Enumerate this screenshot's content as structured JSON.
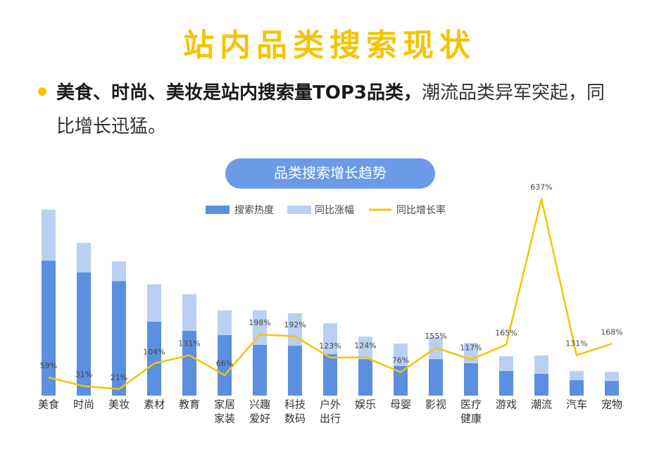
{
  "header": {
    "title": "站内品类搜索现状",
    "bullet_bold": "美食、时尚、美妆是站内搜索量TOP3品类，",
    "bullet_text": "潮流品类异军突起，同比增长迅猛。"
  },
  "chart_data": {
    "type": "bar",
    "title": "品类搜索增长趋势",
    "categories": [
      [
        "美食"
      ],
      [
        "时尚"
      ],
      [
        "美妆"
      ],
      [
        "素材"
      ],
      [
        "教育"
      ],
      [
        "家居",
        "家装"
      ],
      [
        "兴趣",
        "爱好"
      ],
      [
        "科技",
        "数码"
      ],
      [
        "户外",
        "出行"
      ],
      [
        "娱乐"
      ],
      [
        "母婴"
      ],
      [
        "影视"
      ],
      [
        "医疗",
        "健康"
      ],
      [
        "游戏"
      ],
      [
        "潮流"
      ],
      [
        "汽车"
      ],
      [
        "宠物"
      ]
    ],
    "ylim": [
      0,
      100
    ],
    "y2lim": [
      0,
      700
    ],
    "series": [
      {
        "name": "搜索热度",
        "color": "#5b8fe0",
        "values": [
          62.5,
          57,
          53,
          34.2,
          30,
          28,
          23.5,
          23.1,
          19.2,
          16.9,
          13.7,
          16.9,
          15,
          11.4,
          10.1,
          7.2,
          6.8
        ]
      },
      {
        "name": "同比涨幅",
        "color": "#b9d0f3",
        "values": [
          23.5,
          13.7,
          9.1,
          17.3,
          16.9,
          11.4,
          16,
          15,
          14.3,
          10.4,
          10.4,
          10.4,
          9.4,
          6.8,
          8.5,
          4.2,
          4.2
        ]
      },
      {
        "name": "同比增长率",
        "color": "#f5c400",
        "axis": "y2",
        "values": [
          59,
          31,
          21,
          104,
          131,
          66,
          198,
          192,
          123,
          124,
          76,
          155,
          117,
          165,
          637,
          131,
          168
        ],
        "value_labels": [
          "59%",
          "31%",
          "21%",
          "104%",
          "131%",
          "66%",
          "198%",
          "192%",
          "123%",
          "124%",
          "76%",
          "155%",
          "117%",
          "165%",
          "637%",
          "131%",
          "168%"
        ]
      }
    ]
  }
}
